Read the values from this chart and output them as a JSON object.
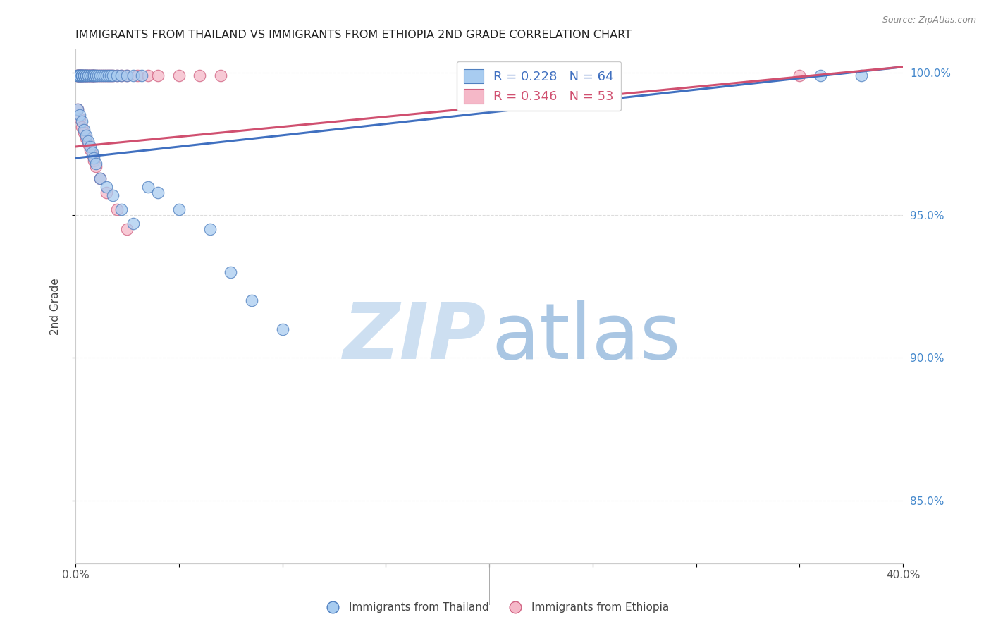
{
  "title": "IMMIGRANTS FROM THAILAND VS IMMIGRANTS FROM ETHIOPIA 2ND GRADE CORRELATION CHART",
  "source": "Source: ZipAtlas.com",
  "ylabel": "2nd Grade",
  "xlim": [
    0.0,
    0.4
  ],
  "ylim": [
    0.828,
    1.008
  ],
  "xtick_positions": [
    0.0,
    0.05,
    0.1,
    0.15,
    0.2,
    0.25,
    0.3,
    0.35,
    0.4
  ],
  "xtick_labels": [
    "0.0%",
    "",
    "",
    "",
    "",
    "",
    "",
    "",
    "40.0%"
  ],
  "ytick_positions": [
    0.85,
    0.9,
    0.95,
    1.0
  ],
  "ytick_labels_right": [
    "85.0%",
    "90.0%",
    "95.0%",
    "100.0%"
  ],
  "legend_R_blue": "0.228",
  "legend_N_blue": "64",
  "legend_R_pink": "0.346",
  "legend_N_pink": "53",
  "blue_fill": "#A8CCF0",
  "pink_fill": "#F5B8C8",
  "blue_edge": "#5080C0",
  "pink_edge": "#D06080",
  "line_blue_color": "#4070C0",
  "line_pink_color": "#D05070",
  "watermark_zip_color": "#C8DCF0",
  "watermark_atlas_color": "#A0C0E0",
  "title_color": "#222222",
  "source_color": "#888888",
  "grid_color": "#DDDDDD",
  "right_axis_color": "#4488CC",
  "thailand_x": [
    0.001,
    0.001,
    0.001,
    0.002,
    0.002,
    0.002,
    0.002,
    0.003,
    0.003,
    0.003,
    0.003,
    0.004,
    0.004,
    0.004,
    0.005,
    0.005,
    0.005,
    0.006,
    0.006,
    0.007,
    0.007,
    0.008,
    0.008,
    0.009,
    0.009,
    0.01,
    0.01,
    0.011,
    0.012,
    0.013,
    0.014,
    0.015,
    0.016,
    0.017,
    0.018,
    0.02,
    0.022,
    0.025,
    0.028,
    0.032,
    0.001,
    0.002,
    0.003,
    0.004,
    0.005,
    0.006,
    0.007,
    0.008,
    0.009,
    0.01,
    0.012,
    0.015,
    0.018,
    0.022,
    0.028,
    0.035,
    0.04,
    0.05,
    0.065,
    0.075,
    0.085,
    0.1,
    0.36,
    0.38
  ],
  "thailand_y": [
    0.999,
    0.999,
    0.999,
    0.999,
    0.999,
    0.999,
    0.999,
    0.999,
    0.999,
    0.999,
    0.999,
    0.999,
    0.999,
    0.999,
    0.999,
    0.999,
    0.999,
    0.999,
    0.999,
    0.999,
    0.999,
    0.999,
    0.999,
    0.999,
    0.999,
    0.999,
    0.999,
    0.999,
    0.999,
    0.999,
    0.999,
    0.999,
    0.999,
    0.999,
    0.999,
    0.999,
    0.999,
    0.999,
    0.999,
    0.999,
    0.987,
    0.985,
    0.983,
    0.98,
    0.978,
    0.976,
    0.974,
    0.972,
    0.97,
    0.968,
    0.963,
    0.96,
    0.957,
    0.952,
    0.947,
    0.96,
    0.958,
    0.952,
    0.945,
    0.93,
    0.92,
    0.91,
    0.999,
    0.999
  ],
  "ethiopia_x": [
    0.001,
    0.001,
    0.001,
    0.002,
    0.002,
    0.002,
    0.003,
    0.003,
    0.004,
    0.004,
    0.005,
    0.005,
    0.006,
    0.006,
    0.007,
    0.007,
    0.008,
    0.008,
    0.009,
    0.009,
    0.01,
    0.011,
    0.012,
    0.013,
    0.014,
    0.015,
    0.016,
    0.017,
    0.018,
    0.02,
    0.022,
    0.025,
    0.03,
    0.035,
    0.04,
    0.05,
    0.06,
    0.07,
    0.001,
    0.002,
    0.003,
    0.004,
    0.005,
    0.006,
    0.007,
    0.008,
    0.009,
    0.01,
    0.012,
    0.015,
    0.02,
    0.025,
    0.35
  ],
  "ethiopia_y": [
    0.999,
    0.999,
    0.999,
    0.999,
    0.999,
    0.999,
    0.999,
    0.999,
    0.999,
    0.999,
    0.999,
    0.999,
    0.999,
    0.999,
    0.999,
    0.999,
    0.999,
    0.999,
    0.999,
    0.999,
    0.999,
    0.999,
    0.999,
    0.999,
    0.999,
    0.999,
    0.999,
    0.999,
    0.999,
    0.999,
    0.999,
    0.999,
    0.999,
    0.999,
    0.999,
    0.999,
    0.999,
    0.999,
    0.987,
    0.984,
    0.981,
    0.979,
    0.977,
    0.975,
    0.973,
    0.971,
    0.969,
    0.967,
    0.963,
    0.958,
    0.952,
    0.945,
    0.999
  ],
  "line_blue_x0": 0.0,
  "line_blue_y0": 0.97,
  "line_blue_x1": 0.4,
  "line_blue_y1": 1.002,
  "line_pink_x0": 0.0,
  "line_pink_y0": 0.974,
  "line_pink_x1": 0.4,
  "line_pink_y1": 1.002
}
